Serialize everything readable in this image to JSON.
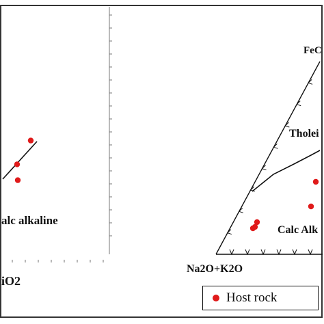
{
  "colors": {
    "point": "#e01a1a",
    "line": "#111111",
    "frame": "#333333"
  },
  "legend": {
    "label": "Host rock"
  },
  "chart_data": [
    {
      "type": "scatter",
      "panel": "left",
      "title": "",
      "xlabel": "iO2",
      "ylabel": "",
      "field_labels": {
        "calc_alkaline": "alc alkaline"
      },
      "divider_line": [
        [
          0.0,
          0.0
        ],
        [
          1.0,
          1.0
        ]
      ],
      "points": [
        {
          "x": 0.35,
          "y": 0.62
        },
        {
          "x": 0.36,
          "y": 0.58
        },
        {
          "x": 0.55,
          "y": 0.68
        }
      ]
    },
    {
      "type": "scatter",
      "panel": "right",
      "diagram": "AFM ternary",
      "apex_labels": {
        "top": "FeC",
        "left": "Na2O+K2O"
      },
      "field_labels": {
        "tholeiitic": "Tholei",
        "calc_alkaline": "Calc Alk"
      },
      "points": [
        {
          "id": 1,
          "desc": "near upper right"
        },
        {
          "id": 2,
          "desc": "middle right"
        },
        {
          "id": 3,
          "desc": "lower left cluster a"
        },
        {
          "id": 4,
          "desc": "lower left cluster b"
        },
        {
          "id": 5,
          "desc": "lower left cluster c"
        }
      ]
    }
  ]
}
